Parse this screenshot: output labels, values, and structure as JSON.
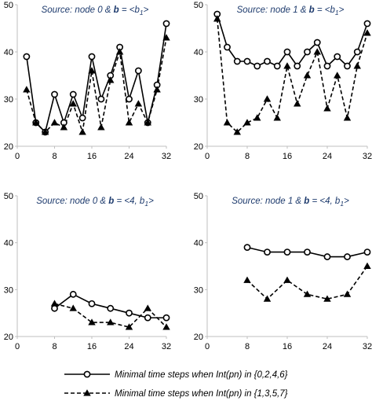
{
  "chart_data": [
    {
      "type": "line",
      "title": {
        "pre": "Source: node 0 & ",
        "bold": "b",
        "mid": " = <b",
        "sub": "1",
        "post": ">"
      },
      "xlim": [
        0,
        32
      ],
      "ylim": [
        20,
        50
      ],
      "xticks": [
        0,
        8,
        16,
        24,
        32
      ],
      "yticks": [
        20,
        30,
        40,
        50
      ],
      "series": [
        {
          "name": "Minimal time steps when Int(pn) in {0,2,4,6}",
          "x": [
            2,
            4,
            6,
            8,
            10,
            12,
            14,
            16,
            18,
            20,
            22,
            24,
            26,
            28,
            30,
            32
          ],
          "y": [
            39,
            25,
            23,
            31,
            25,
            31,
            26,
            39,
            30,
            35,
            41,
            30,
            36,
            25,
            33,
            46
          ]
        },
        {
          "name": "Minimal time steps when Int(pn) in {1,3,5,7}",
          "x": [
            2,
            4,
            6,
            8,
            10,
            12,
            14,
            16,
            18,
            20,
            22,
            24,
            26,
            28,
            30,
            32
          ],
          "y": [
            32,
            25,
            23,
            25,
            24,
            29,
            23,
            36,
            24,
            34,
            40,
            25,
            29,
            25,
            32,
            43
          ]
        }
      ]
    },
    {
      "type": "line",
      "title": {
        "pre": "Source: node 1 & ",
        "bold": "b",
        "mid": " = <b",
        "sub": "1",
        "post": ">"
      },
      "xlim": [
        0,
        32
      ],
      "ylim": [
        20,
        50
      ],
      "xticks": [
        0,
        8,
        16,
        24,
        32
      ],
      "yticks": [
        20,
        30,
        40,
        50
      ],
      "series": [
        {
          "name": "Minimal time steps when Int(pn) in {0,2,4,6}",
          "x": [
            2,
            4,
            6,
            8,
            10,
            12,
            14,
            16,
            18,
            20,
            22,
            24,
            26,
            28,
            30,
            32
          ],
          "y": [
            48,
            41,
            38,
            38,
            37,
            38,
            37,
            40,
            37,
            40,
            42,
            37,
            39,
            37,
            40,
            46
          ]
        },
        {
          "name": "Minimal time steps when Int(pn) in {1,3,5,7}",
          "x": [
            2,
            4,
            6,
            8,
            10,
            12,
            14,
            16,
            18,
            20,
            22,
            24,
            26,
            28,
            30,
            32
          ],
          "y": [
            47,
            25,
            23,
            25,
            26,
            30,
            26,
            37,
            29,
            35,
            40,
            28,
            35,
            26,
            37,
            44
          ]
        }
      ]
    },
    {
      "type": "line",
      "title": {
        "pre": "Source: node 0 & ",
        "bold": "b",
        "mid": " = <4, b",
        "sub": "1",
        "post": ">"
      },
      "xlim": [
        0,
        32
      ],
      "ylim": [
        20,
        50
      ],
      "xticks": [
        0,
        8,
        16,
        24,
        32
      ],
      "yticks": [
        20,
        30,
        40,
        50
      ],
      "series": [
        {
          "name": "Minimal time steps when Int(pn) in {0,2,4,6}",
          "x": [
            8,
            12,
            16,
            20,
            24,
            28,
            32
          ],
          "y": [
            26,
            29,
            27,
            26,
            25,
            24,
            24
          ]
        },
        {
          "name": "Minimal time steps when Int(pn) in {1,3,5,7}",
          "x": [
            8,
            12,
            16,
            20,
            24,
            28,
            32
          ],
          "y": [
            27,
            26,
            23,
            23,
            22,
            26,
            22
          ]
        }
      ]
    },
    {
      "type": "line",
      "title": {
        "pre": "Source: node 1 & ",
        "bold": "b",
        "mid": " = <4, b",
        "sub": "1",
        "post": ">"
      },
      "xlim": [
        0,
        32
      ],
      "ylim": [
        20,
        50
      ],
      "xticks": [
        0,
        8,
        16,
        24,
        32
      ],
      "yticks": [
        20,
        30,
        40,
        50
      ],
      "series": [
        {
          "name": "Minimal time steps when Int(pn) in {0,2,4,6}",
          "x": [
            8,
            12,
            16,
            20,
            24,
            28,
            32
          ],
          "y": [
            39,
            38,
            38,
            38,
            37,
            37,
            38
          ]
        },
        {
          "name": "Minimal time steps when Int(pn) in {1,3,5,7}",
          "x": [
            8,
            12,
            16,
            20,
            24,
            28,
            32
          ],
          "y": [
            32,
            28,
            32,
            29,
            28,
            29,
            35
          ]
        }
      ]
    }
  ],
  "legend": [
    {
      "label": "Minimal time steps when Int(pn) in {0,2,4,6}",
      "marker": "circle",
      "line": "solid"
    },
    {
      "label": "Minimal time steps when Int(pn) in {1,3,5,7}",
      "marker": "triangle",
      "line": "dashed"
    }
  ],
  "colors": {
    "line": "#000000",
    "title": "#1f3c6e",
    "axis": "#bfbfbf"
  }
}
